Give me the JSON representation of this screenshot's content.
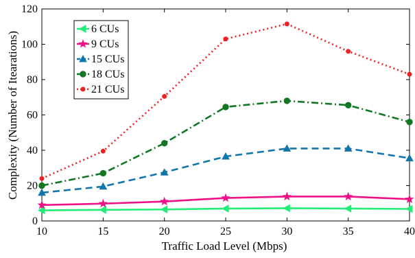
{
  "chart_data": {
    "type": "line",
    "xlabel": "Traffic Load Level (Mbps)",
    "ylabel": "Complexity (Number of Itearations)",
    "x": [
      10,
      15,
      20,
      25,
      30,
      35,
      40
    ],
    "xlim": [
      10,
      40
    ],
    "ylim": [
      0,
      120
    ],
    "xticks": [
      "10",
      "15",
      "20",
      "25",
      "30",
      "35",
      "40"
    ],
    "yticks": [
      "0",
      "20",
      "40",
      "60",
      "80",
      "100",
      "120"
    ],
    "grid": false,
    "legend_position": "top-left",
    "series": [
      {
        "name": "6 CUs",
        "color": "#22ee77",
        "marker": "triangle-left",
        "dash": "solid",
        "values": [
          6,
          6.3,
          6.5,
          7,
          7.2,
          7,
          6.8
        ]
      },
      {
        "name": "9 CUs",
        "color": "#ee1188",
        "marker": "star",
        "dash": "solid",
        "values": [
          9,
          9.8,
          11,
          13,
          13.8,
          13.8,
          12.3
        ]
      },
      {
        "name": "15 CUs",
        "color": "#1177aa",
        "marker": "triangle-up",
        "dash": "dashed",
        "values": [
          16,
          19.5,
          27.5,
          36.5,
          41,
          41,
          35.5
        ]
      },
      {
        "name": "18 CUs",
        "color": "#117722",
        "marker": "circle",
        "dash": "dashdot",
        "values": [
          20,
          27,
          44,
          64.5,
          68,
          65.5,
          56
        ]
      },
      {
        "name": "21 CUs",
        "color": "#ee2222",
        "marker": "dot",
        "dash": "dotted",
        "values": [
          24,
          39.5,
          70.5,
          103,
          111.5,
          96,
          83
        ]
      }
    ]
  }
}
